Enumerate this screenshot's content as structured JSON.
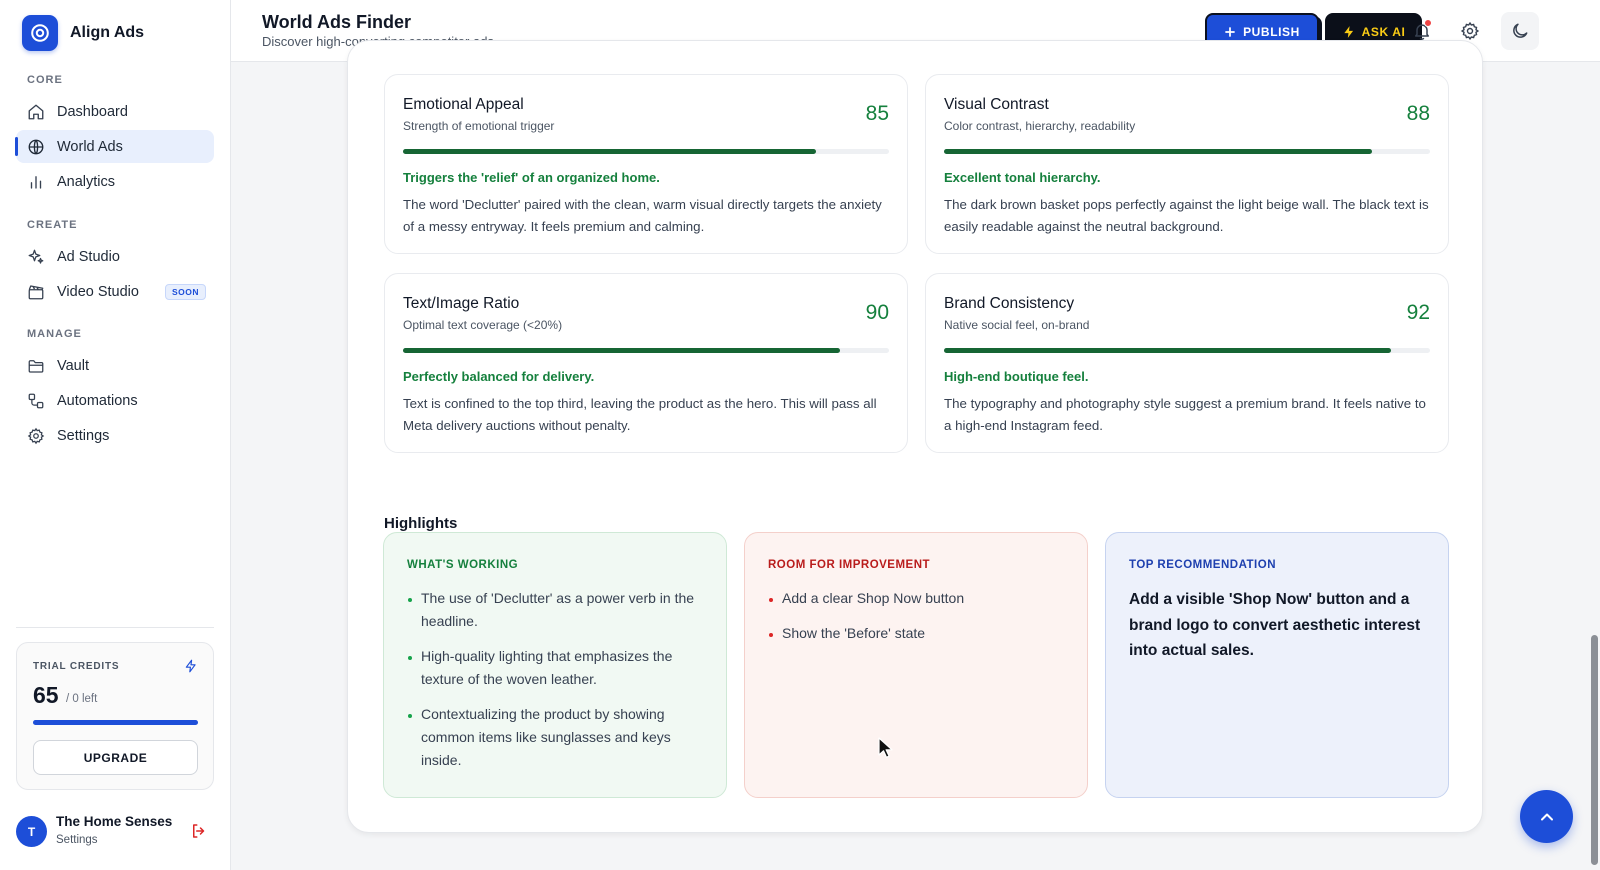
{
  "brand": {
    "name": "Align Ads"
  },
  "sidebar": {
    "sections": {
      "core": "CORE",
      "create": "CREATE",
      "manage": "MANAGE"
    },
    "items": [
      {
        "label": "Dashboard",
        "icon": "home-icon"
      },
      {
        "label": "World Ads",
        "icon": "globe-icon",
        "active": true
      },
      {
        "label": "Analytics",
        "icon": "bar-chart-icon"
      },
      {
        "label": "Ad Studio",
        "icon": "sparkles-icon"
      },
      {
        "label": "Video Studio",
        "icon": "clapperboard-icon",
        "badge": "SOON"
      },
      {
        "label": "Vault",
        "icon": "folder-icon"
      },
      {
        "label": "Automations",
        "icon": "workflow-icon"
      },
      {
        "label": "Settings",
        "icon": "gear-icon"
      }
    ],
    "credits": {
      "label": "TRIAL CREDITS",
      "value": "65",
      "left": "/ 0 left",
      "progress": 1.0,
      "upgrade_label": "UPGRADE"
    },
    "user": {
      "initial": "T",
      "name": "The Home Senses",
      "sub": "Settings"
    }
  },
  "header": {
    "title": "World Ads Finder",
    "subtitle": "Discover high-converting competitor ads",
    "publish_label": "PUBLISH",
    "ask_ai_label": "ASK AI"
  },
  "metrics": [
    {
      "title": "Emotional Appeal",
      "subtitle": "Strength of emotional trigger",
      "score": 85,
      "verdict": "Triggers the 'relief' of an organized home.",
      "description": "The word 'Declutter' paired with the clean, warm visual directly targets the anxiety of a messy entryway. It feels premium and calming."
    },
    {
      "title": "Visual Contrast",
      "subtitle": "Color contrast, hierarchy, readability",
      "score": 88,
      "verdict": "Excellent tonal hierarchy.",
      "description": "The dark brown basket pops perfectly against the light beige wall. The black text is easily readable against the neutral background."
    },
    {
      "title": "Text/Image Ratio",
      "subtitle": "Optimal text coverage (<20%)",
      "score": 90,
      "verdict": "Perfectly balanced for delivery.",
      "description": "Text is confined to the top third, leaving the product as the hero. This will pass all Meta delivery auctions without penalty."
    },
    {
      "title": "Brand Consistency",
      "subtitle": "Native social feel, on-brand",
      "score": 92,
      "verdict": "High-end boutique feel.",
      "description": "The typography and photography style suggest a premium brand. It feels native to a high-end Instagram feed."
    }
  ],
  "highlights": {
    "heading": "Highlights",
    "working": {
      "label": "WHAT'S WORKING",
      "items": [
        "The use of 'Declutter' as a power verb in the headline.",
        "High-quality lighting that emphasizes the texture of the woven leather.",
        "Contextualizing the product by showing common items like sunglasses and keys inside."
      ]
    },
    "improve": {
      "label": "ROOM FOR IMPROVEMENT",
      "items": [
        "Add a clear Shop Now button",
        "Show the 'Before' state"
      ]
    },
    "recommendation": {
      "label": "TOP RECOMMENDATION",
      "text": "Add a visible 'Shop Now' button and a brand logo to convert aesthetic interest into actual sales."
    }
  },
  "colors": {
    "accent": "#1d4ed8",
    "score_green": "#15803d",
    "improve_red": "#b91c1c",
    "ask_ai_yellow": "#facc15"
  }
}
